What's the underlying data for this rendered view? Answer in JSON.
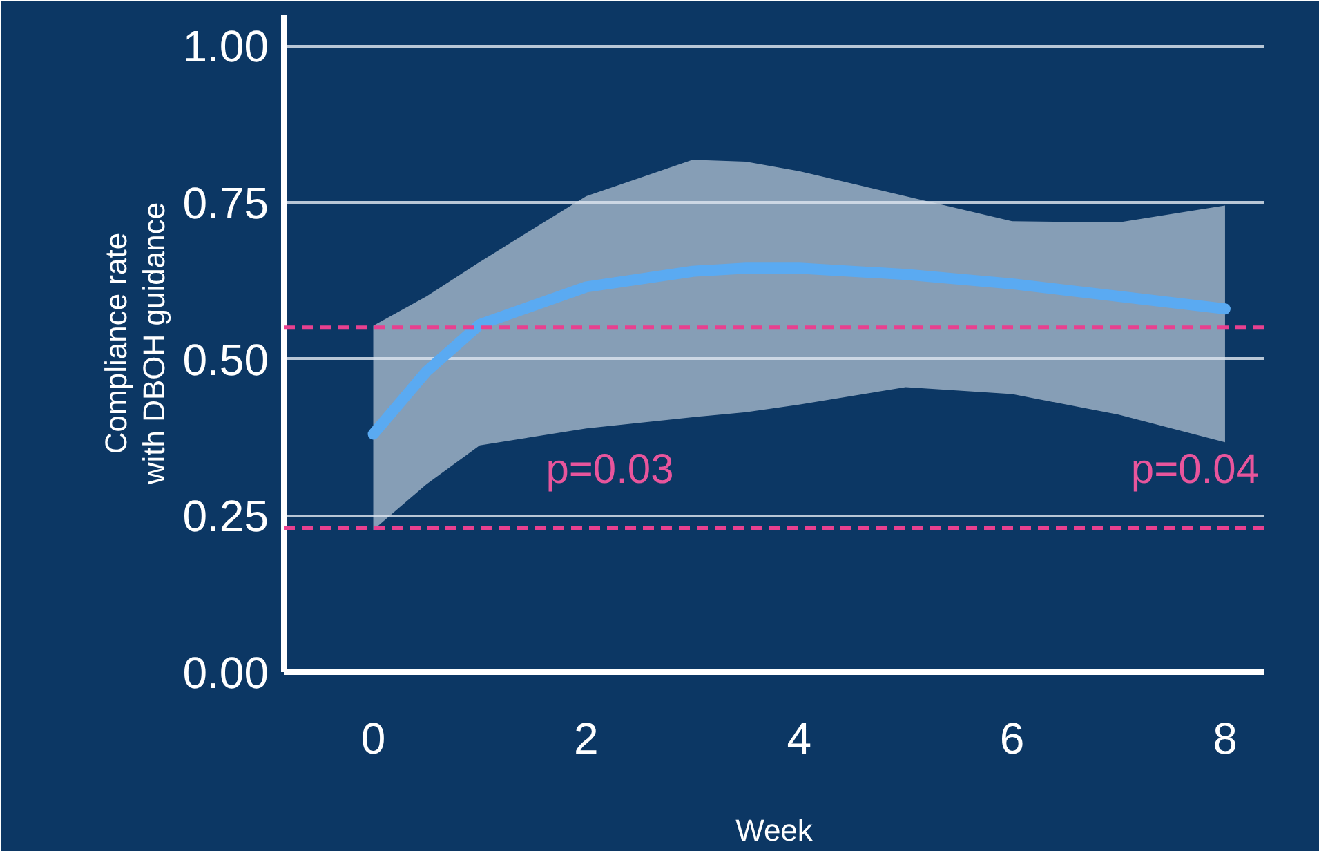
{
  "chart_data": {
    "type": "line",
    "xlabel": "Week",
    "ylabel": "Compliance rate\nwith DBOH guidance",
    "series": [
      {
        "color": "#5aaaf2",
        "x": [
          0,
          0.5,
          1,
          2,
          3,
          3.5,
          4,
          5,
          6,
          7,
          8
        ],
        "values": [
          0.38,
          0.48,
          0.555,
          0.615,
          0.64,
          0.645,
          0.645,
          0.635,
          0.62,
          0.6,
          0.58
        ],
        "lower": [
          0.227,
          0.3,
          0.362,
          0.389,
          0.407,
          0.415,
          0.427,
          0.455,
          0.444,
          0.411,
          0.367
        ],
        "upper": [
          0.553,
          0.6,
          0.655,
          0.76,
          0.818,
          0.815,
          0.8,
          0.76,
          0.72,
          0.718,
          0.745
        ]
      }
    ],
    "xlim": [
      -0.84,
      8.37
    ],
    "ylim": [
      0,
      1.05
    ],
    "xticks": [
      0,
      2,
      4,
      6,
      8
    ],
    "yticks": [
      {
        "value": 0,
        "label": "0.00"
      },
      {
        "value": 0.25,
        "label": "0.25"
      },
      {
        "value": 0.5,
        "label": "0.50"
      },
      {
        "value": 0.75,
        "label": "0.75"
      },
      {
        "value": 1,
        "label": "1.00"
      }
    ],
    "grid": "y",
    "line_style": "solid",
    "marker": "none",
    "ref_lines": [
      {
        "axis": "y",
        "value": 0.55,
        "color": "#e8408f",
        "line_style": "dashed"
      },
      {
        "axis": "y",
        "value": 0.23,
        "color": "#e8408f",
        "line_style": "dashed"
      }
    ],
    "annotations": [
      "p=0.03",
      "p=0.04"
    ]
  }
}
